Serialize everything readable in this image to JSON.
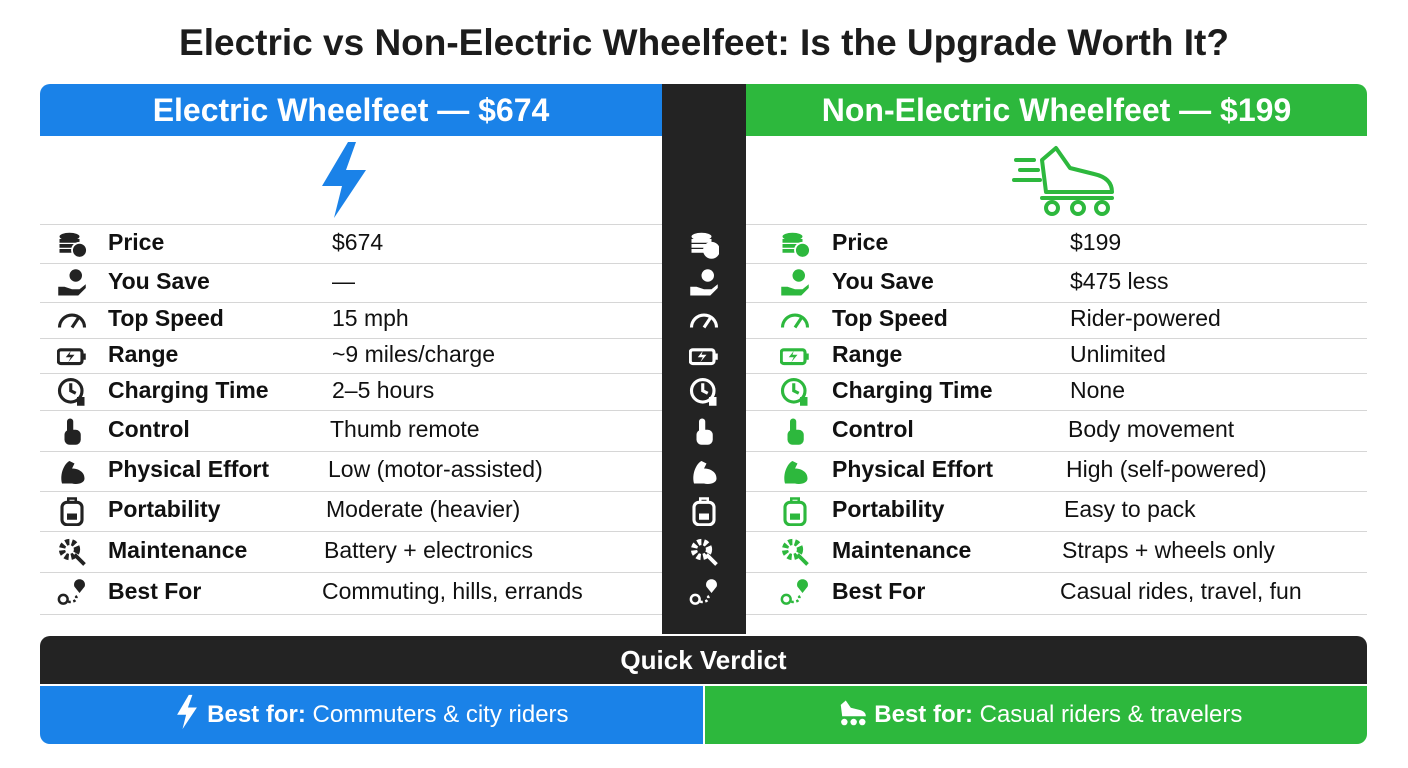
{
  "title": "Electric vs Non-Electric Wheelfeet: Is the Upgrade Worth It?",
  "electric": {
    "header": "Electric Wheelfeet — $674",
    "rows": [
      {
        "label": "Price",
        "value": "$674"
      },
      {
        "label": "You Save",
        "value": "—"
      },
      {
        "label": "Top Speed",
        "value": "15 mph"
      },
      {
        "label": "Range",
        "value": "~9 miles/charge"
      },
      {
        "label": "Charging Time",
        "value": "2–5 hours"
      },
      {
        "label": "Control",
        "value": "Thumb remote"
      },
      {
        "label": "Physical Effort",
        "value": "Low (motor-assisted)"
      },
      {
        "label": "Portability",
        "value": "Moderate (heavier)"
      },
      {
        "label": "Maintenance",
        "value": "Battery + electronics"
      },
      {
        "label": "Best For",
        "value": "Commuting, hills, errands"
      }
    ]
  },
  "non_electric": {
    "header": "Non-Electric Wheelfeet — $199",
    "rows": [
      {
        "label": "Price",
        "value": "$199"
      },
      {
        "label": "You Save",
        "value": "$475 less"
      },
      {
        "label": "Top Speed",
        "value": "Rider-powered"
      },
      {
        "label": "Range",
        "value": "Unlimited"
      },
      {
        "label": "Charging Time",
        "value": "None"
      },
      {
        "label": "Control",
        "value": "Body movement"
      },
      {
        "label": "Physical Effort",
        "value": "High (self-powered)"
      },
      {
        "label": "Portability",
        "value": "Easy to pack"
      },
      {
        "label": "Maintenance",
        "value": "Straps + wheels only"
      },
      {
        "label": "Best For",
        "value": "Casual rides, travel, fun"
      }
    ]
  },
  "verdict": {
    "title": "Quick Verdict",
    "electric": {
      "lead": "Best for:",
      "text": "Commuters & city riders"
    },
    "non_electric": {
      "lead": "Best for:",
      "text": "Casual riders & travelers"
    }
  }
}
